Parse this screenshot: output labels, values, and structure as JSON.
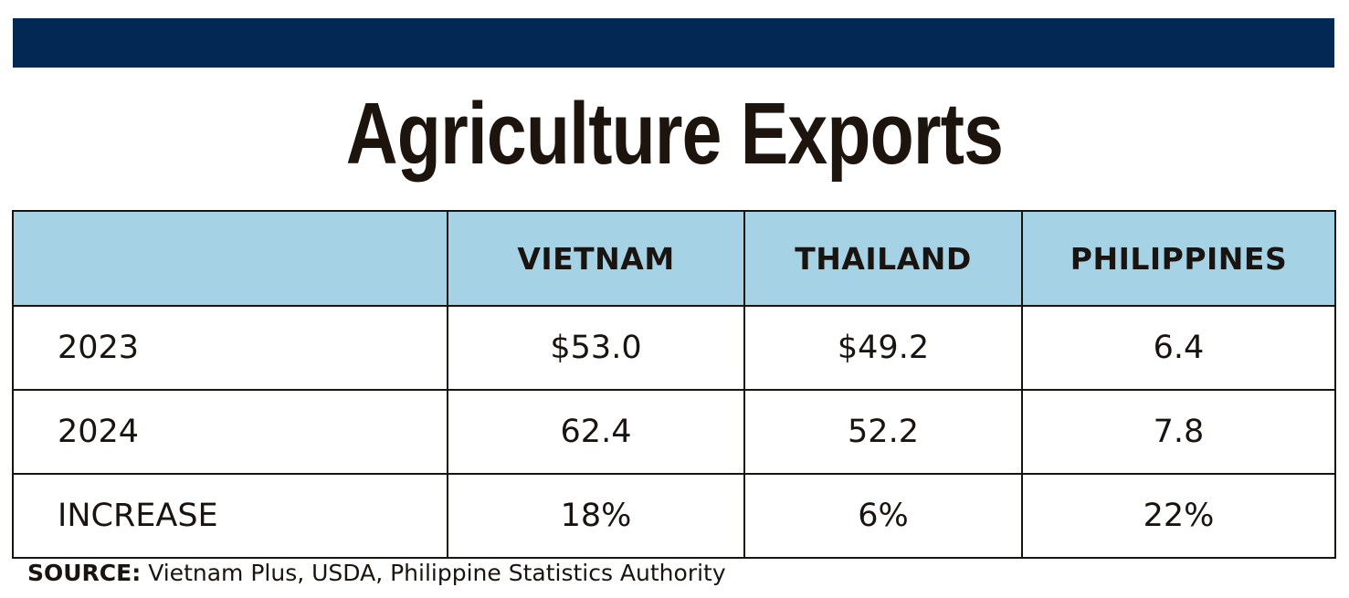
{
  "colors": {
    "top_band": "#032853",
    "header_bg": "#a6d2e6",
    "text": "#1a1410"
  },
  "title": "Agriculture Exports",
  "source_label": "SOURCE:",
  "source_text": "Vietnam Plus, USDA, Philippine Statistics Authority",
  "chart_data": {
    "type": "table",
    "title": "Agriculture Exports",
    "columns": [
      "",
      "VIETNAM",
      "THAILAND",
      "PHILIPPINES"
    ],
    "rows": [
      {
        "label": "2023",
        "values": [
          "$53.0",
          "$49.2",
          "6.4"
        ]
      },
      {
        "label": "2024",
        "values": [
          "62.4",
          "52.2",
          "7.8"
        ]
      },
      {
        "label": "INCREASE",
        "values": [
          "18%",
          "6%",
          "22%"
        ]
      }
    ]
  }
}
